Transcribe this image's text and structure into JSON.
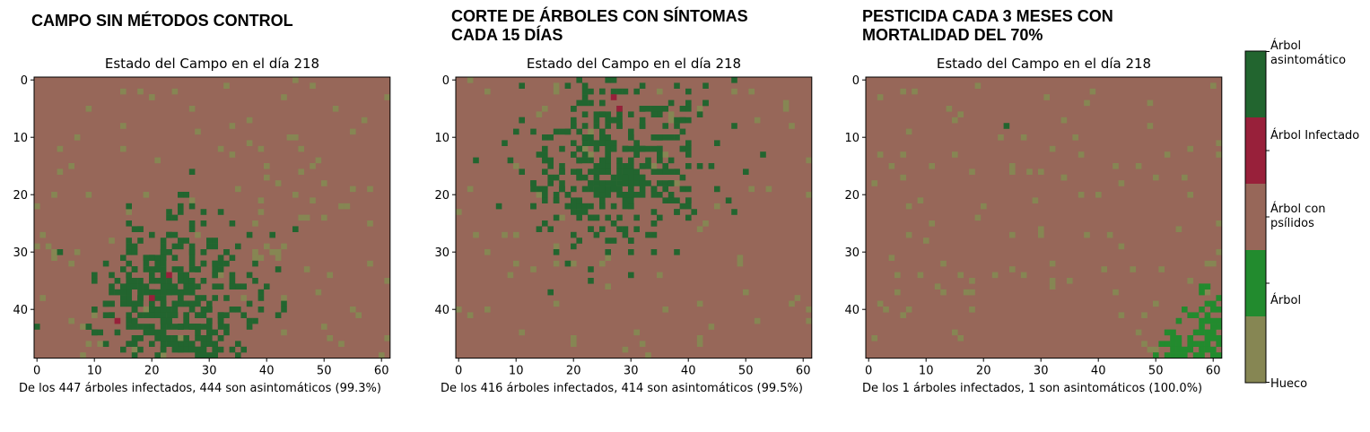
{
  "headings": [
    "CAMPO SIN MÉTODOS CONTROL",
    "CORTE DE ÁRBOLES CON SÍNTOMAS\nCADA 15 DÍAS",
    "PESTICIDA CADA 3 MESES CON\nMORTALIDAD DEL 70%"
  ],
  "colors": {
    "hueco": "#868653",
    "arbol": "#228b2e",
    "psilidos": "#976759",
    "infectado": "#98203a",
    "asintomatico": "#22652f"
  },
  "colorbar": {
    "labels": [
      "Árbol asintomático",
      "Árbol Infectado",
      "Árbol con psílidos",
      "Árbol",
      "Hueco"
    ]
  },
  "chart_data": [
    {
      "type": "heatmap",
      "title": "Estado del Campo en el día 218",
      "caption": "De los 447 árboles infectados, 444 son asintomáticos (99.3%)",
      "grid": {
        "cols": 62,
        "rows": 49,
        "background_state": "Árbol con psílidos"
      },
      "x_ticks": [
        0,
        10,
        20,
        30,
        40,
        50,
        60
      ],
      "y_ticks": [
        0,
        10,
        20,
        30,
        40
      ],
      "cluster_asintomatico": {
        "center_x": 24,
        "center_y": 40,
        "spread_x": 7,
        "spread_y": 8,
        "count": 444
      },
      "infectados": [
        [
          23,
          34
        ],
        [
          20,
          38
        ],
        [
          14,
          42
        ]
      ],
      "huecos_count": 110
    },
    {
      "type": "heatmap",
      "title": "Estado del Campo en el día 218",
      "caption": "De los 416 árboles infectados, 414 son asintomáticos (99.5%)",
      "grid": {
        "cols": 62,
        "rows": 49,
        "background_state": "Árbol con psílidos"
      },
      "x_ticks": [
        0,
        10,
        20,
        30,
        40,
        50,
        60
      ],
      "y_ticks": [
        0,
        10,
        20,
        30,
        40
      ],
      "cluster_asintomatico": {
        "center_x": 28,
        "center_y": 14,
        "spread_x": 8,
        "spread_y": 8,
        "count": 414
      },
      "infectados": [
        [
          27,
          3
        ],
        [
          28,
          5
        ]
      ],
      "huecos_count": 85
    },
    {
      "type": "heatmap",
      "title": "Estado del Campo en el día 218",
      "caption": "De los 1 árboles infectados, 1 son asintomáticos (100.0%)",
      "grid": {
        "cols": 62,
        "rows": 49,
        "background_state": "Árbol con psílidos"
      },
      "x_ticks": [
        0,
        10,
        20,
        30,
        40,
        50,
        60
      ],
      "y_ticks": [
        0,
        10,
        20,
        30,
        40
      ],
      "asintomaticos": [
        [
          24,
          8
        ]
      ],
      "arbol_region": {
        "x_min": 52,
        "y_min": 35,
        "note": "bottom-right corner"
      },
      "huecos_count": 105
    }
  ]
}
